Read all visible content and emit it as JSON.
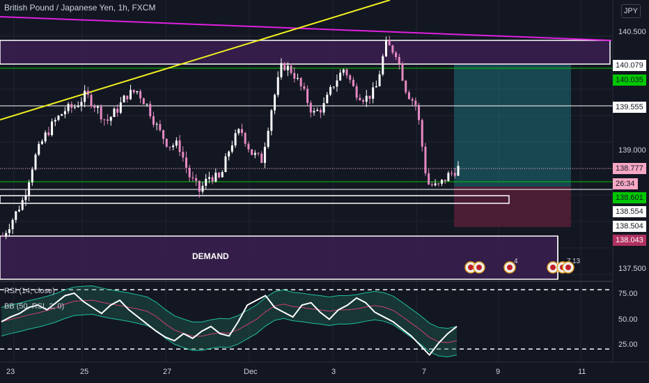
{
  "header": {
    "title": "British Pound / Japanese Yen, 1h, FXCM",
    "currency_button": "JPY"
  },
  "indicators": {
    "rsi_label": "RSI (14, close)",
    "bb_label": "BB (50, RSI, 2, 0)"
  },
  "zones": {
    "demand_label": "DEMAND"
  },
  "price_labels": [
    {
      "text": "140.079",
      "bg": "#ffffff",
      "fg": "#131722"
    },
    {
      "text": "140.035",
      "bg": "#00c800",
      "fg": "#131722"
    },
    {
      "text": "139.555",
      "bg": "#ffffff",
      "fg": "#131722"
    },
    {
      "text": "138.777",
      "bg": "#f7a8c4",
      "fg": "#131722"
    },
    {
      "text": "26:34",
      "bg": "#f7a8c4",
      "fg": "#131722"
    },
    {
      "text": "138.601",
      "bg": "#00c800",
      "fg": "#131722"
    },
    {
      "text": "138.554",
      "bg": "#ffffff",
      "fg": "#131722"
    },
    {
      "text": "138.504",
      "bg": "#ffffff",
      "fg": "#131722"
    },
    {
      "text": "138.043",
      "bg": "#b03060",
      "fg": "#ffffff"
    }
  ],
  "event_markers": [
    "4",
    "7",
    "13"
  ],
  "chart_data": [
    {
      "type": "candlestick",
      "title": "British Pound / Japanese Yen, 1h, FXCM",
      "y_ticks": [
        "140.500",
        "139.000",
        "137.500"
      ],
      "x_ticks": [
        "23",
        "25",
        "27",
        "Dec",
        "3",
        "7",
        "9",
        "11"
      ],
      "ylim": [
        137.33,
        140.98
      ],
      "approx_close_path": [
        137.92,
        138.15,
        138.4,
        138.9,
        139.2,
        139.4,
        139.55,
        139.6,
        139.75,
        139.6,
        139.4,
        139.55,
        139.75,
        139.8,
        139.6,
        139.3,
        139.1,
        139.1,
        138.7,
        138.5,
        138.7,
        138.65,
        139.1,
        139.3,
        139.0,
        138.9,
        139.6,
        140.15,
        140.05,
        139.8,
        139.5,
        139.6,
        139.9,
        140.1,
        139.8,
        139.7,
        139.8,
        140.4,
        140.3,
        139.8,
        139.6,
        138.6,
        138.55,
        138.7,
        138.8
      ],
      "levels": [
        140.5,
        140.079,
        140.035,
        139.555,
        138.777,
        138.601,
        138.554,
        138.504,
        138.043
      ]
    },
    {
      "type": "line",
      "title": "RSI (14, close)",
      "y_ticks": [
        "75.00",
        "50.00",
        "25.00"
      ],
      "ylim": [
        14,
        82
      ],
      "levels": [
        75,
        25
      ],
      "approx_values": [
        48,
        52,
        55,
        60,
        62,
        58,
        64,
        70,
        72,
        65,
        60,
        55,
        62,
        66,
        58,
        52,
        46,
        40,
        35,
        32,
        38,
        34,
        40,
        44,
        38,
        36,
        48,
        62,
        66,
        70,
        60,
        56,
        52,
        62,
        64,
        56,
        50,
        58,
        62,
        68,
        64,
        56,
        52,
        48,
        42,
        36,
        28,
        20,
        30,
        38,
        44
      ]
    }
  ]
}
